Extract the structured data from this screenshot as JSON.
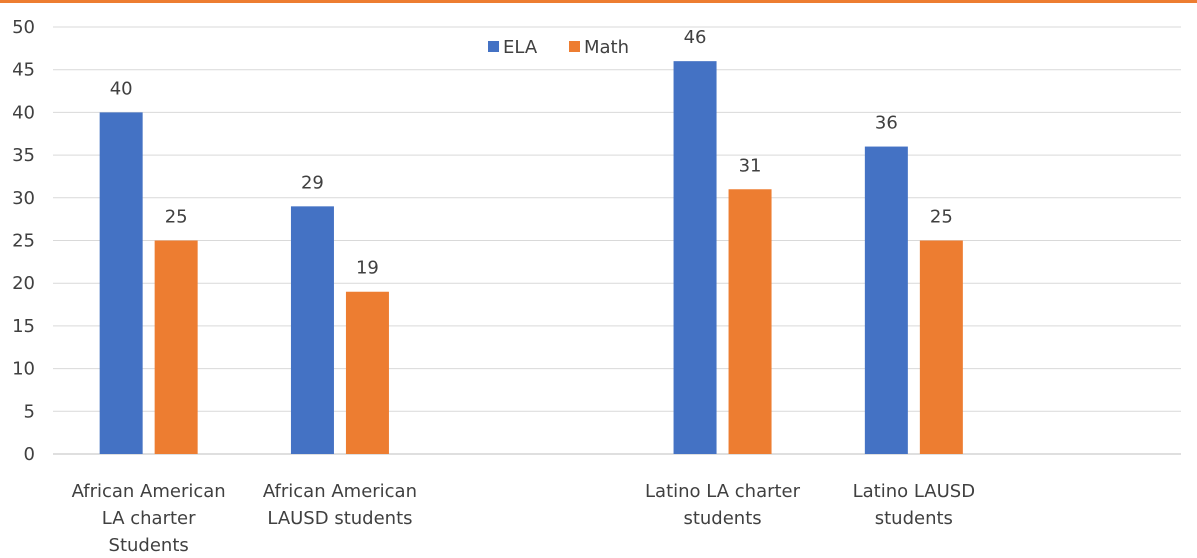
{
  "colors": {
    "accent": "#ED7D31",
    "ela": "#4472C4",
    "math": "#ED7D31",
    "grid": "#D9D9D9",
    "axis": "#BFBFBF",
    "text": "#404040"
  },
  "chart_data": {
    "type": "bar",
    "title": "",
    "xlabel": "",
    "ylabel": "",
    "ylim": [
      0,
      50
    ],
    "yticks": [
      0,
      5,
      10,
      15,
      20,
      25,
      30,
      35,
      40,
      45,
      50
    ],
    "grid": true,
    "legend_position": "top",
    "categories": [
      [
        "African American",
        "LA charter",
        "Students"
      ],
      [
        "African American",
        "LAUSD students"
      ],
      [
        ""
      ],
      [
        "Latino LA charter",
        "students"
      ],
      [
        "Latino LAUSD",
        "students"
      ],
      [
        ""
      ]
    ],
    "series": [
      {
        "name": "ELA",
        "color": "#4472C4",
        "values": [
          40,
          29,
          null,
          46,
          36,
          null
        ]
      },
      {
        "name": "Math",
        "color": "#ED7D31",
        "values": [
          25,
          19,
          null,
          31,
          25,
          null
        ]
      }
    ]
  }
}
